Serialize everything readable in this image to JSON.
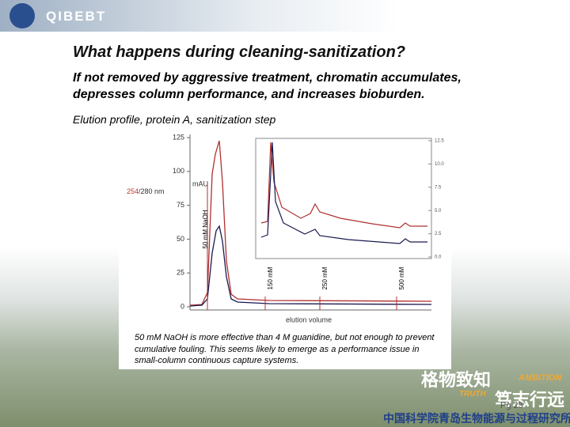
{
  "header": {
    "logo": "QIBEBT"
  },
  "title": "What happens during cleaning-sanitization?",
  "subtitle": [
    "If not removed by aggressive treatment, chromatin accumulates,",
    "depresses column performance, and increases bioburden."
  ],
  "caption": "Elution profile, protein A, sanitization step",
  "figure": {
    "y_unit": "mAU",
    "wavelength_a": "254",
    "wavelength_b": "/280 nm",
    "yticks": [
      0,
      25,
      50,
      75,
      100,
      125
    ],
    "ylim": [
      0,
      125
    ],
    "inset_yticks": [
      {
        "value": 0,
        "label": "0.0"
      },
      2.5,
      {
        "value": 5,
        "label": "5.0"
      },
      7.5,
      {
        "value": 10,
        "label": "10.0"
      },
      12.5
    ],
    "inset_ylim": [
      0,
      12.5
    ],
    "markers": [
      "50 mM NaOH",
      "150 mM",
      "250 mM",
      "500 mM"
    ],
    "x_label": "elution volume",
    "note": [
      "50 mM NaOH is more effective than 4 M guanidine, but not enough to prevent",
      "cumulative fouling. This seems likely to emerge as a performance issue in",
      "small-column continuous capture systems."
    ]
  },
  "footer": {
    "page": "Pg 23",
    "institute": "中国科学院青岛生物能源与过程研究所",
    "motto_a": "格物致知",
    "motto_b": "笃志行远",
    "word_a": "AMBITION",
    "word_b": "TRUTH"
  }
}
